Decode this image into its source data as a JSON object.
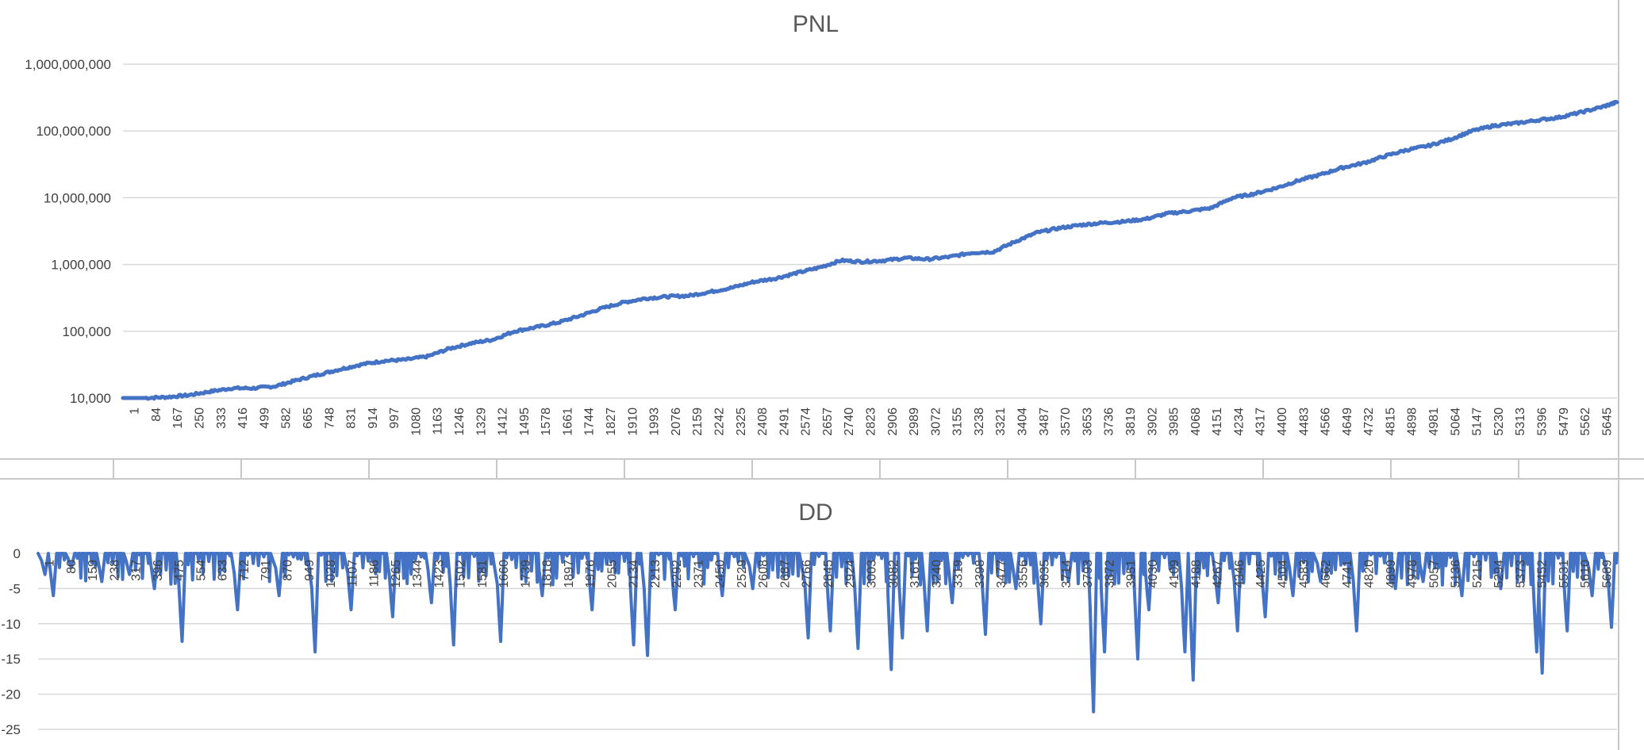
{
  "sheet": {
    "frame_color": "#c8c8c8"
  },
  "chart_data": [
    {
      "type": "line",
      "title": "PNL",
      "xlabel": "",
      "ylabel": "",
      "y_scale": "log",
      "ylim": [
        10000,
        1000000000
      ],
      "y_ticks": [
        "1,000,000,000",
        "100,000,000",
        "10,000,000",
        "1,000,000",
        "100,000",
        "10,000"
      ],
      "xlim": [
        1,
        5700
      ],
      "x_tick_labels": [
        "1",
        "84",
        "167",
        "250",
        "333",
        "416",
        "499",
        "582",
        "665",
        "748",
        "831",
        "914",
        "997",
        "1080",
        "1163",
        "1246",
        "1329",
        "1412",
        "1495",
        "1578",
        "1661",
        "1744",
        "1827",
        "1910",
        "1993",
        "2076",
        "2159",
        "2242",
        "2325",
        "2408",
        "2491",
        "2574",
        "2657",
        "2740",
        "2823",
        "2906",
        "2989",
        "3072",
        "3155",
        "3238",
        "3321",
        "3404",
        "3487",
        "3570",
        "3653",
        "3736",
        "3819",
        "3902",
        "3985",
        "4068",
        "4151",
        "4234",
        "4317",
        "4400",
        "4483",
        "4566",
        "4649",
        "4732",
        "4815",
        "4898",
        "4981",
        "5064",
        "5147",
        "5230",
        "5313",
        "5396",
        "5479",
        "5562",
        "5645"
      ],
      "grid": true,
      "legend": "none",
      "color": "#4472c4",
      "series": [
        {
          "x": [
            1,
            84,
            167,
            250,
            333,
            416,
            499,
            582,
            665,
            748,
            831,
            914,
            997,
            1080,
            1163,
            1246,
            1329,
            1412,
            1495,
            1578,
            1661,
            1744,
            1827,
            1910,
            1993,
            2076,
            2159,
            2242,
            2325,
            2408,
            2491,
            2574,
            2657,
            2740,
            2823,
            2906,
            2989,
            3072,
            3155,
            3238,
            3321,
            3404,
            3487,
            3570,
            3653,
            3736,
            3819,
            3902,
            3985,
            4068,
            4151,
            4234,
            4317,
            4400,
            4483,
            4566,
            4649,
            4732,
            4815,
            4898,
            4981,
            5064,
            5147,
            5230,
            5313,
            5396,
            5479,
            5562,
            5645,
            5700
          ],
          "values": [
            10000,
            10000,
            10300,
            11000,
            12500,
            14000,
            14000,
            15000,
            18500,
            22500,
            27000,
            32000,
            36000,
            37500,
            42000,
            55000,
            66000,
            75000,
            100000,
            115000,
            135000,
            170000,
            220000,
            270000,
            310000,
            330000,
            340000,
            390000,
            450000,
            550000,
            620000,
            750000,
            900000,
            1150000,
            1100000,
            1150000,
            1250000,
            1200000,
            1300000,
            1500000,
            1550000,
            2200000,
            3000000,
            3500000,
            3900000,
            4200000,
            4400000,
            4800000,
            5800000,
            6300000,
            7000000,
            10000000,
            11500000,
            14000000,
            18000000,
            22000000,
            28000000,
            33000000,
            42000000,
            52000000,
            60000000,
            75000000,
            100000000,
            120000000,
            130000000,
            145000000,
            160000000,
            190000000,
            230000000,
            270000000
          ]
        }
      ]
    },
    {
      "type": "line",
      "title": "DD",
      "xlabel": "",
      "ylabel": "",
      "ylim": [
        -25,
        0
      ],
      "y_ticks": [
        "0",
        "-5",
        "-10",
        "-15",
        "-20",
        "-25"
      ],
      "x_tick_labels": [
        "1",
        "80",
        "159",
        "238",
        "317",
        "396",
        "475",
        "554",
        "633",
        "712",
        "791",
        "870",
        "949",
        "1028",
        "1107",
        "1186",
        "1265",
        "1344",
        "1423",
        "1502",
        "1581",
        "1660",
        "1739",
        "1818",
        "1897",
        "1976",
        "2055",
        "2134",
        "2213",
        "2292",
        "2371",
        "2450",
        "2529",
        "2608",
        "2687",
        "2766",
        "2845",
        "2924",
        "3003",
        "3082",
        "3161",
        "3240",
        "3319",
        "3398",
        "3477",
        "3556",
        "3635",
        "3714",
        "3793",
        "3872",
        "3951",
        "4030",
        "4109",
        "4188",
        "4267",
        "4346",
        "4425",
        "4504",
        "4583",
        "4662",
        "4741",
        "4820",
        "4899",
        "4978",
        "5057",
        "5136",
        "5215",
        "5294",
        "5373",
        "5452",
        "5531",
        "5610",
        "5689"
      ],
      "grid": true,
      "legend": "none",
      "color": "#4472c4",
      "troughs": [
        {
          "x": 25,
          "y": -3
        },
        {
          "x": 55,
          "y": -6
        },
        {
          "x": 120,
          "y": -2
        },
        {
          "x": 230,
          "y": -4
        },
        {
          "x": 330,
          "y": -3
        },
        {
          "x": 420,
          "y": -5
        },
        {
          "x": 520,
          "y": -12.5
        },
        {
          "x": 720,
          "y": -8
        },
        {
          "x": 870,
          "y": -6
        },
        {
          "x": 1000,
          "y": -14
        },
        {
          "x": 1130,
          "y": -8
        },
        {
          "x": 1280,
          "y": -9
        },
        {
          "x": 1420,
          "y": -7
        },
        {
          "x": 1500,
          "y": -13
        },
        {
          "x": 1670,
          "y": -12.5
        },
        {
          "x": 1820,
          "y": -6
        },
        {
          "x": 2000,
          "y": -8
        },
        {
          "x": 2150,
          "y": -13
        },
        {
          "x": 2200,
          "y": -14.5
        },
        {
          "x": 2300,
          "y": -8
        },
        {
          "x": 2470,
          "y": -6
        },
        {
          "x": 2580,
          "y": -5
        },
        {
          "x": 2780,
          "y": -12
        },
        {
          "x": 2860,
          "y": -11
        },
        {
          "x": 2960,
          "y": -13.5
        },
        {
          "x": 3080,
          "y": -16.5
        },
        {
          "x": 3120,
          "y": -12
        },
        {
          "x": 3210,
          "y": -11
        },
        {
          "x": 3300,
          "y": -7
        },
        {
          "x": 3420,
          "y": -11.5
        },
        {
          "x": 3530,
          "y": -5
        },
        {
          "x": 3620,
          "y": -10
        },
        {
          "x": 3720,
          "y": -4
        },
        {
          "x": 3810,
          "y": -22.5
        },
        {
          "x": 3850,
          "y": -14
        },
        {
          "x": 3970,
          "y": -15
        },
        {
          "x": 4010,
          "y": -8
        },
        {
          "x": 4140,
          "y": -14
        },
        {
          "x": 4170,
          "y": -18
        },
        {
          "x": 4260,
          "y": -7
        },
        {
          "x": 4330,
          "y": -11
        },
        {
          "x": 4430,
          "y": -9
        },
        {
          "x": 4530,
          "y": -6
        },
        {
          "x": 4630,
          "y": -4
        },
        {
          "x": 4760,
          "y": -11
        },
        {
          "x": 4900,
          "y": -5
        },
        {
          "x": 5000,
          "y": -4
        },
        {
          "x": 5140,
          "y": -6
        },
        {
          "x": 5280,
          "y": -5
        },
        {
          "x": 5410,
          "y": -14
        },
        {
          "x": 5430,
          "y": -17
        },
        {
          "x": 5520,
          "y": -11
        },
        {
          "x": 5610,
          "y": -6
        },
        {
          "x": 5680,
          "y": -10.5
        }
      ]
    }
  ]
}
